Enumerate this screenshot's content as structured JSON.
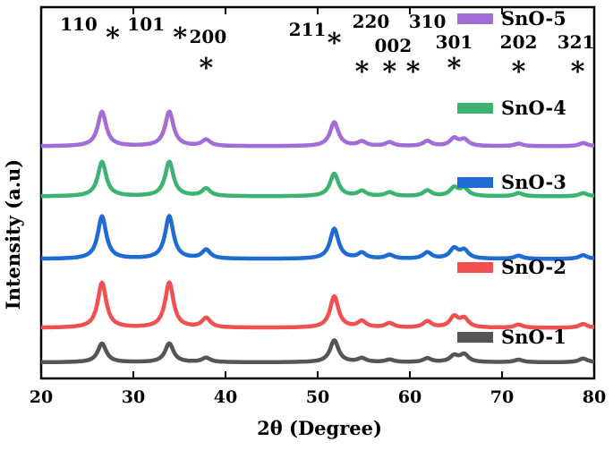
{
  "chart_data": {
    "type": "line",
    "title": "",
    "xlabel": "2θ (Degree)",
    "ylabel": "Intensity (a.u)",
    "xlim": [
      20,
      80
    ],
    "xticks": [
      20,
      30,
      40,
      50,
      60,
      70,
      80
    ],
    "grid": false,
    "legend_position": "right",
    "series": [
      {
        "name": "SnO-1",
        "color": "#555555",
        "baseline": 0.0,
        "peaks": [
          [
            26.6,
            0.3
          ],
          [
            33.9,
            0.3
          ],
          [
            37.9,
            0.07
          ],
          [
            51.8,
            0.35
          ],
          [
            54.8,
            0.06
          ],
          [
            57.8,
            0.04
          ],
          [
            61.9,
            0.06
          ],
          [
            64.8,
            0.1
          ],
          [
            65.9,
            0.12
          ],
          [
            71.8,
            0.04
          ],
          [
            78.8,
            0.06
          ]
        ]
      },
      {
        "name": "SnO-2",
        "color": "#f05050",
        "baseline": 0.55,
        "peaks": [
          [
            26.6,
            0.72
          ],
          [
            33.9,
            0.72
          ],
          [
            37.9,
            0.15
          ],
          [
            51.8,
            0.5
          ],
          [
            54.8,
            0.1
          ],
          [
            57.8,
            0.07
          ],
          [
            61.9,
            0.1
          ],
          [
            64.8,
            0.17
          ],
          [
            65.9,
            0.14
          ],
          [
            71.8,
            0.05
          ],
          [
            78.8,
            0.06
          ]
        ]
      },
      {
        "name": "SnO-3",
        "color": "#1f6bd6",
        "baseline": 1.65,
        "peaks": [
          [
            26.6,
            0.68
          ],
          [
            33.9,
            0.68
          ],
          [
            37.9,
            0.14
          ],
          [
            51.8,
            0.48
          ],
          [
            54.8,
            0.09
          ],
          [
            57.8,
            0.06
          ],
          [
            61.9,
            0.1
          ],
          [
            64.8,
            0.16
          ],
          [
            65.9,
            0.13
          ],
          [
            71.8,
            0.05
          ],
          [
            78.8,
            0.06
          ]
        ]
      },
      {
        "name": "SnO-4",
        "color": "#3cb371",
        "baseline": 2.65,
        "peaks": [
          [
            26.6,
            0.55
          ],
          [
            33.9,
            0.55
          ],
          [
            37.9,
            0.12
          ],
          [
            51.8,
            0.36
          ],
          [
            54.8,
            0.08
          ],
          [
            57.8,
            0.06
          ],
          [
            61.9,
            0.09
          ],
          [
            64.8,
            0.13
          ],
          [
            65.9,
            0.12
          ],
          [
            71.8,
            0.05
          ],
          [
            78.8,
            0.05
          ]
        ]
      },
      {
        "name": "SnO-5",
        "color": "#a36cd6",
        "baseline": 3.45,
        "peaks": [
          [
            26.6,
            0.55
          ],
          [
            33.9,
            0.55
          ],
          [
            37.9,
            0.1
          ],
          [
            51.8,
            0.38
          ],
          [
            54.8,
            0.07
          ],
          [
            57.8,
            0.06
          ],
          [
            61.9,
            0.08
          ],
          [
            64.8,
            0.12
          ],
          [
            65.9,
            0.1
          ],
          [
            71.8,
            0.04
          ],
          [
            78.8,
            0.05
          ]
        ]
      }
    ],
    "peak_labels": [
      {
        "hkl": "110",
        "two_theta": 26.6
      },
      {
        "hkl": "101",
        "two_theta": 33.9
      },
      {
        "hkl": "200",
        "two_theta": 37.9
      },
      {
        "hkl": "211",
        "two_theta": 51.8
      },
      {
        "hkl": "220",
        "two_theta": 54.8
      },
      {
        "hkl": "002",
        "two_theta": 57.8
      },
      {
        "hkl": "310",
        "two_theta": 61.9
      },
      {
        "hkl": "301",
        "two_theta": 64.8
      },
      {
        "hkl": "202",
        "two_theta": 71.8
      },
      {
        "hkl": "321",
        "two_theta": 78.8
      }
    ],
    "marker_symbol": "*"
  }
}
